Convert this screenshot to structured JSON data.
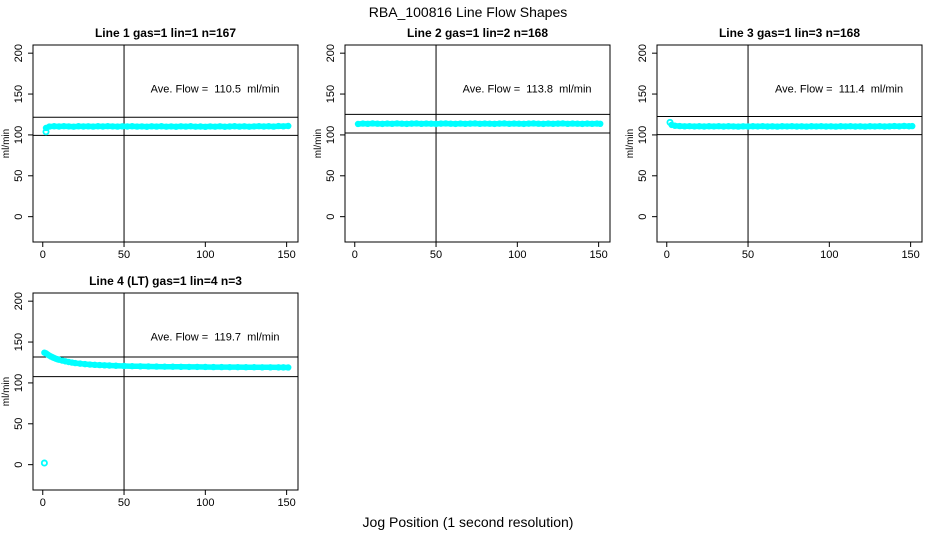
{
  "figure": {
    "title": "RBA_100816  Line Flow Shapes",
    "xlabel": "Jog Position (1 second resolution)",
    "background": "#ffffff",
    "point_color": "#00ffff",
    "line_color": "#000000"
  },
  "chart_data": [
    {
      "type": "scatter",
      "title": "Line 1 gas=1 lin=1 n=167",
      "ylabel": "ml/min",
      "annotation": "Ave. Flow =  110.5  ml/min",
      "ave_flow_ml_min": 110.5,
      "x_ticks": [
        0,
        50,
        100,
        150
      ],
      "y_ticks": [
        0,
        50,
        100,
        150,
        200
      ],
      "xlim": [
        -6,
        157
      ],
      "ylim": [
        -31,
        210
      ],
      "grid": false,
      "legend": false,
      "vline_x": 50,
      "hlines": [
        121.6,
        99.5
      ],
      "annotation_pos": [
        106,
        152
      ],
      "points": [
        [
          2,
          108.5
        ],
        [
          4,
          110.2
        ],
        [
          7,
          110.6
        ],
        [
          10,
          110.3
        ],
        [
          13,
          110.7
        ],
        [
          16,
          110.4
        ],
        [
          19,
          110.1
        ],
        [
          22,
          110.6
        ],
        [
          25,
          110.3
        ],
        [
          28,
          110.5
        ],
        [
          31,
          110.2
        ],
        [
          34,
          110.6
        ],
        [
          37,
          110.3
        ],
        [
          40,
          110.7
        ],
        [
          43,
          110.4
        ],
        [
          46,
          110.2
        ],
        [
          49,
          110.5
        ],
        [
          52,
          110.3
        ],
        [
          55,
          110.6
        ],
        [
          58,
          110.2
        ],
        [
          61,
          110.4
        ],
        [
          64,
          110.0
        ],
        [
          67,
          110.5
        ],
        [
          70,
          110.2
        ],
        [
          73,
          110.6
        ],
        [
          76,
          110.1
        ],
        [
          79,
          110.4
        ],
        [
          82,
          110.0
        ],
        [
          85,
          110.5
        ],
        [
          88,
          110.2
        ],
        [
          91,
          110.6
        ],
        [
          94,
          110.1
        ],
        [
          97,
          110.3
        ],
        [
          100,
          109.9
        ],
        [
          103,
          110.4
        ],
        [
          106,
          110.1
        ],
        [
          109,
          110.5
        ],
        [
          112,
          110.0
        ],
        [
          115,
          110.3
        ],
        [
          118,
          110.6
        ],
        [
          121,
          110.2
        ],
        [
          124,
          110.5
        ],
        [
          127,
          110.1
        ],
        [
          130,
          110.4
        ],
        [
          133,
          110.7
        ],
        [
          136,
          110.3
        ],
        [
          139,
          110.6
        ],
        [
          142,
          110.2
        ],
        [
          145,
          110.8
        ],
        [
          148,
          110.5
        ],
        [
          151,
          110.9
        ]
      ],
      "outliers": [
        [
          2,
          103.8
        ]
      ]
    },
    {
      "type": "scatter",
      "title": "Line 2 gas=1 lin=2 n=168",
      "ylabel": "ml/min",
      "annotation": "Ave. Flow =  113.8  ml/min",
      "ave_flow_ml_min": 113.8,
      "x_ticks": [
        0,
        50,
        100,
        150
      ],
      "y_ticks": [
        0,
        50,
        100,
        150,
        200
      ],
      "xlim": [
        -6,
        157
      ],
      "ylim": [
        -31,
        210
      ],
      "grid": false,
      "legend": false,
      "vline_x": 50,
      "hlines": [
        125.2,
        102.4
      ],
      "annotation_pos": [
        106,
        152
      ],
      "points": [
        [
          2,
          113.4
        ],
        [
          5,
          113.9
        ],
        [
          8,
          113.6
        ],
        [
          11,
          114.0
        ],
        [
          14,
          113.7
        ],
        [
          17,
          113.5
        ],
        [
          20,
          113.9
        ],
        [
          23,
          113.6
        ],
        [
          26,
          114.0
        ],
        [
          29,
          113.7
        ],
        [
          32,
          113.5
        ],
        [
          35,
          113.8
        ],
        [
          38,
          114.0
        ],
        [
          41,
          113.6
        ],
        [
          44,
          113.9
        ],
        [
          47,
          113.7
        ],
        [
          50,
          113.5
        ],
        [
          53,
          113.8
        ],
        [
          56,
          114.0
        ],
        [
          59,
          113.7
        ],
        [
          62,
          113.5
        ],
        [
          65,
          113.9
        ],
        [
          68,
          113.6
        ],
        [
          71,
          113.8
        ],
        [
          74,
          114.0
        ],
        [
          77,
          113.6
        ],
        [
          80,
          113.9
        ],
        [
          83,
          113.7
        ],
        [
          86,
          113.5
        ],
        [
          89,
          113.8
        ],
        [
          92,
          114.0
        ],
        [
          95,
          113.6
        ],
        [
          98,
          113.9
        ],
        [
          101,
          113.7
        ],
        [
          104,
          113.5
        ],
        [
          107,
          113.8
        ],
        [
          110,
          114.0
        ],
        [
          113,
          113.7
        ],
        [
          116,
          113.5
        ],
        [
          119,
          113.9
        ],
        [
          122,
          113.6
        ],
        [
          125,
          113.8
        ],
        [
          128,
          114.0
        ],
        [
          131,
          113.6
        ],
        [
          134,
          113.9
        ],
        [
          137,
          113.7
        ],
        [
          140,
          113.5
        ],
        [
          143,
          113.8
        ],
        [
          146,
          113.6
        ],
        [
          149,
          113.9
        ],
        [
          151,
          113.6
        ]
      ],
      "outliers": []
    },
    {
      "type": "scatter",
      "title": "Line 3 gas=1 lin=3 n=168",
      "ylabel": "ml/min",
      "annotation": "Ave. Flow =  111.4  ml/min",
      "ave_flow_ml_min": 111.4,
      "x_ticks": [
        0,
        50,
        100,
        150
      ],
      "y_ticks": [
        0,
        50,
        100,
        150,
        200
      ],
      "xlim": [
        -6,
        157
      ],
      "ylim": [
        -31,
        210
      ],
      "grid": false,
      "legend": false,
      "vline_x": 50,
      "hlines": [
        122.5,
        100.3
      ],
      "annotation_pos": [
        106,
        152
      ],
      "points": [
        [
          3,
          112.3
        ],
        [
          5,
          111.2
        ],
        [
          8,
          110.8
        ],
        [
          11,
          110.5
        ],
        [
          14,
          110.7
        ],
        [
          17,
          110.4
        ],
        [
          20,
          110.6
        ],
        [
          23,
          110.3
        ],
        [
          26,
          110.6
        ],
        [
          29,
          110.4
        ],
        [
          32,
          110.7
        ],
        [
          35,
          110.3
        ],
        [
          38,
          110.6
        ],
        [
          41,
          110.4
        ],
        [
          44,
          110.2
        ],
        [
          47,
          110.5
        ],
        [
          50,
          110.3
        ],
        [
          53,
          110.6
        ],
        [
          56,
          110.4
        ],
        [
          59,
          110.7
        ],
        [
          62,
          110.3
        ],
        [
          65,
          110.5
        ],
        [
          68,
          110.2
        ],
        [
          71,
          110.6
        ],
        [
          74,
          110.4
        ],
        [
          77,
          110.7
        ],
        [
          80,
          110.3
        ],
        [
          83,
          110.5
        ],
        [
          86,
          110.2
        ],
        [
          89,
          110.6
        ],
        [
          92,
          110.4
        ],
        [
          95,
          110.7
        ],
        [
          98,
          110.3
        ],
        [
          101,
          110.5
        ],
        [
          104,
          110.2
        ],
        [
          107,
          110.6
        ],
        [
          110,
          110.4
        ],
        [
          113,
          110.7
        ],
        [
          116,
          110.3
        ],
        [
          119,
          110.5
        ],
        [
          122,
          110.2
        ],
        [
          125,
          110.6
        ],
        [
          128,
          110.4
        ],
        [
          131,
          110.7
        ],
        [
          134,
          110.3
        ],
        [
          137,
          110.5
        ],
        [
          140,
          110.8
        ],
        [
          143,
          110.5
        ],
        [
          146,
          110.9
        ],
        [
          149,
          110.6
        ],
        [
          151,
          110.8
        ]
      ],
      "outliers": [
        [
          2,
          115.3
        ]
      ]
    },
    {
      "type": "scatter",
      "title": "Line 4 (LT) gas=1 lin=4 n=3",
      "ylabel": "ml/min",
      "annotation": "Ave. Flow =  119.7  ml/min",
      "ave_flow_ml_min": 119.7,
      "x_ticks": [
        0,
        50,
        100,
        150
      ],
      "y_ticks": [
        0,
        50,
        100,
        150,
        200
      ],
      "xlim": [
        -6,
        157
      ],
      "ylim": [
        -31,
        210
      ],
      "grid": false,
      "legend": false,
      "vline_x": 50,
      "hlines": [
        131.7,
        107.7
      ],
      "annotation_pos": [
        106,
        152
      ],
      "points": [
        [
          1,
          137.0
        ],
        [
          2,
          136.2
        ],
        [
          3,
          134.8
        ],
        [
          4,
          133.5
        ],
        [
          5,
          132.4
        ],
        [
          6,
          131.4
        ],
        [
          7,
          130.5
        ],
        [
          8,
          129.7
        ],
        [
          9,
          129.0
        ],
        [
          10,
          128.4
        ],
        [
          12,
          127.3
        ],
        [
          14,
          126.4
        ],
        [
          16,
          125.6
        ],
        [
          18,
          124.9
        ],
        [
          20,
          124.3
        ],
        [
          23,
          123.6
        ],
        [
          26,
          123.0
        ],
        [
          29,
          122.5
        ],
        [
          32,
          122.1
        ],
        [
          35,
          121.8
        ],
        [
          38,
          121.5
        ],
        [
          41,
          121.3
        ],
        [
          45,
          121.0
        ],
        [
          50,
          120.7
        ],
        [
          55,
          120.5
        ],
        [
          60,
          120.3
        ],
        [
          65,
          120.1
        ],
        [
          70,
          120.0
        ],
        [
          75,
          119.9
        ],
        [
          80,
          119.8
        ],
        [
          85,
          119.7
        ],
        [
          90,
          119.6
        ],
        [
          95,
          119.6
        ],
        [
          100,
          119.5
        ],
        [
          105,
          119.4
        ],
        [
          110,
          119.4
        ],
        [
          115,
          119.3
        ],
        [
          120,
          119.3
        ],
        [
          125,
          119.2
        ],
        [
          130,
          119.2
        ],
        [
          135,
          119.1
        ],
        [
          140,
          119.1
        ],
        [
          145,
          119.0
        ],
        [
          148,
          119.0
        ],
        [
          151,
          118.9
        ]
      ],
      "outliers": [
        [
          1,
          2.0
        ]
      ]
    }
  ]
}
